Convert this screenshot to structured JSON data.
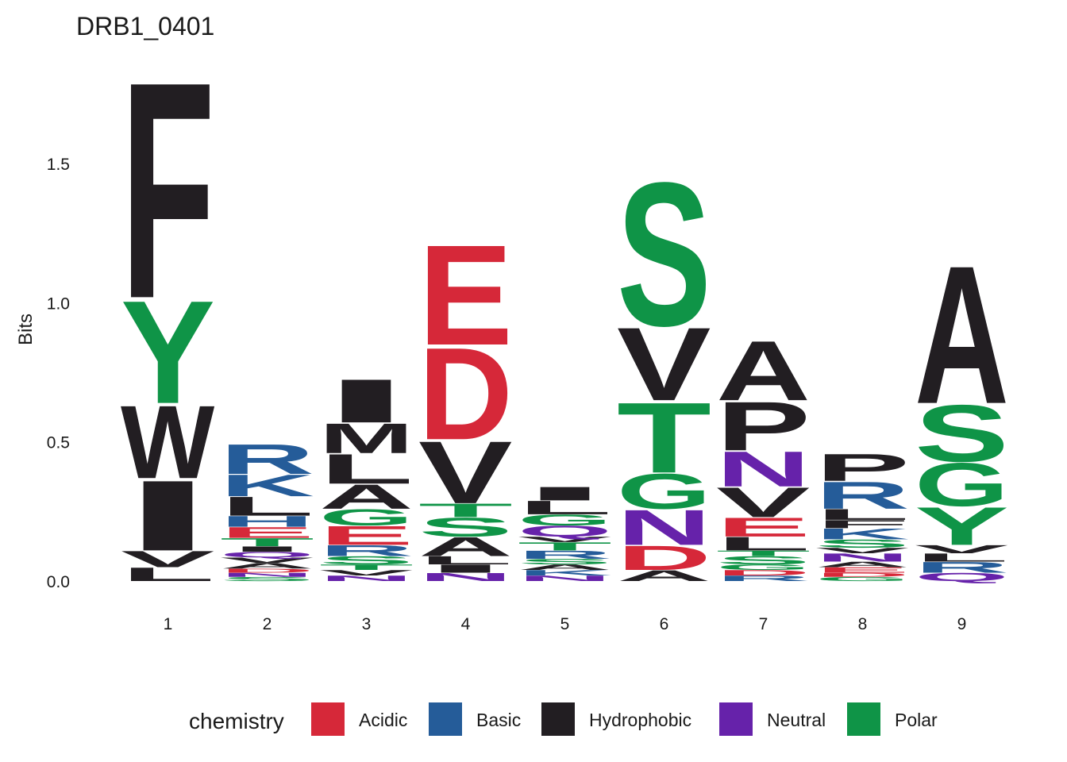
{
  "chart_data": {
    "type": "sequence-logo",
    "title": "DRB1_0401",
    "xlabel": "",
    "ylabel": "Bits",
    "ylim": [
      0,
      1.82
    ],
    "yticks": [
      "0.0",
      "0.5",
      "1.0",
      "1.5"
    ],
    "ytick_values": [
      0,
      0.5,
      1.0,
      1.5
    ],
    "grid": false,
    "legend": {
      "title": "chemistry",
      "position": "bottom",
      "entries": [
        {
          "name": "Acidic",
          "color": "#D62839"
        },
        {
          "name": "Basic",
          "color": "#255C99"
        },
        {
          "name": "Hydrophobic",
          "color": "#221E22"
        },
        {
          "name": "Neutral",
          "color": "#6622AA"
        },
        {
          "name": "Polar",
          "color": "#0F9447"
        }
      ]
    },
    "positions": [
      {
        "label": "1",
        "letters": [
          {
            "aa": "F",
            "bits": 0.8,
            "chem": "Hydrophobic"
          },
          {
            "aa": "Y",
            "bits": 0.38,
            "chem": "Polar"
          },
          {
            "aa": "W",
            "bits": 0.27,
            "chem": "Hydrophobic"
          },
          {
            "aa": "I",
            "bits": 0.26,
            "chem": "Hydrophobic"
          },
          {
            "aa": "V",
            "bits": 0.06,
            "chem": "Hydrophobic"
          },
          {
            "aa": "L",
            "bits": 0.05,
            "chem": "Hydrophobic"
          }
        ]
      },
      {
        "label": "2",
        "letters": [
          {
            "aa": "R",
            "bits": 0.11,
            "chem": "Basic"
          },
          {
            "aa": "K",
            "bits": 0.08,
            "chem": "Basic"
          },
          {
            "aa": "L",
            "bits": 0.07,
            "chem": "Hydrophobic"
          },
          {
            "aa": "H",
            "bits": 0.04,
            "chem": "Basic"
          },
          {
            "aa": "E",
            "bits": 0.04,
            "chem": "Acidic"
          },
          {
            "aa": "T",
            "bits": 0.03,
            "chem": "Polar"
          },
          {
            "aa": "I",
            "bits": 0.02,
            "chem": "Hydrophobic"
          },
          {
            "aa": "Q",
            "bits": 0.02,
            "chem": "Neutral"
          },
          {
            "aa": "V",
            "bits": 0.02,
            "chem": "Hydrophobic"
          },
          {
            "aa": "A",
            "bits": 0.02,
            "chem": "Hydrophobic"
          },
          {
            "aa": "D",
            "bits": 0.015,
            "chem": "Acidic"
          },
          {
            "aa": "N",
            "bits": 0.015,
            "chem": "Neutral"
          },
          {
            "aa": "S",
            "bits": 0.015,
            "chem": "Polar"
          }
        ]
      },
      {
        "label": "3",
        "letters": [
          {
            "aa": "I",
            "bits": 0.16,
            "chem": "Hydrophobic"
          },
          {
            "aa": "M",
            "bits": 0.11,
            "chem": "Hydrophobic"
          },
          {
            "aa": "L",
            "bits": 0.11,
            "chem": "Hydrophobic"
          },
          {
            "aa": "A",
            "bits": 0.09,
            "chem": "Hydrophobic"
          },
          {
            "aa": "G",
            "bits": 0.06,
            "chem": "Polar"
          },
          {
            "aa": "E",
            "bits": 0.07,
            "chem": "Acidic"
          },
          {
            "aa": "R",
            "bits": 0.04,
            "chem": "Basic"
          },
          {
            "aa": "S",
            "bits": 0.03,
            "chem": "Polar"
          },
          {
            "aa": "T",
            "bits": 0.02,
            "chem": "Polar"
          },
          {
            "aa": "V",
            "bits": 0.02,
            "chem": "Hydrophobic"
          },
          {
            "aa": "N",
            "bits": 0.02,
            "chem": "Neutral"
          }
        ]
      },
      {
        "label": "4",
        "letters": [
          {
            "aa": "E",
            "bits": 0.37,
            "chem": "Acidic"
          },
          {
            "aa": "D",
            "bits": 0.34,
            "chem": "Acidic"
          },
          {
            "aa": "V",
            "bits": 0.23,
            "chem": "Hydrophobic"
          },
          {
            "aa": "T",
            "bits": 0.05,
            "chem": "Polar"
          },
          {
            "aa": "S",
            "bits": 0.07,
            "chem": "Polar"
          },
          {
            "aa": "A",
            "bits": 0.07,
            "chem": "Hydrophobic"
          },
          {
            "aa": "L",
            "bits": 0.03,
            "chem": "Hydrophobic"
          },
          {
            "aa": "I",
            "bits": 0.03,
            "chem": "Hydrophobic"
          },
          {
            "aa": "N",
            "bits": 0.03,
            "chem": "Neutral"
          }
        ]
      },
      {
        "label": "5",
        "letters": [
          {
            "aa": "I",
            "bits": 0.05,
            "chem": "Hydrophobic"
          },
          {
            "aa": "L",
            "bits": 0.05,
            "chem": "Hydrophobic"
          },
          {
            "aa": "G",
            "bits": 0.04,
            "chem": "Polar"
          },
          {
            "aa": "Q",
            "bits": 0.04,
            "chem": "Neutral"
          },
          {
            "aa": "V",
            "bits": 0.02,
            "chem": "Hydrophobic"
          },
          {
            "aa": "T",
            "bits": 0.03,
            "chem": "Polar"
          },
          {
            "aa": "R",
            "bits": 0.03,
            "chem": "Basic"
          },
          {
            "aa": "S",
            "bits": 0.02,
            "chem": "Polar"
          },
          {
            "aa": "A",
            "bits": 0.02,
            "chem": "Hydrophobic"
          },
          {
            "aa": "K",
            "bits": 0.02,
            "chem": "Basic"
          },
          {
            "aa": "N",
            "bits": 0.02,
            "chem": "Neutral"
          }
        ]
      },
      {
        "label": "6",
        "letters": [
          {
            "aa": "S",
            "bits": 0.53,
            "chem": "Polar"
          },
          {
            "aa": "V",
            "bits": 0.27,
            "chem": "Hydrophobic"
          },
          {
            "aa": "T",
            "bits": 0.26,
            "chem": "Polar"
          },
          {
            "aa": "G",
            "bits": 0.13,
            "chem": "Polar"
          },
          {
            "aa": "N",
            "bits": 0.13,
            "chem": "Neutral"
          },
          {
            "aa": "D",
            "bits": 0.09,
            "chem": "Acidic"
          },
          {
            "aa": "A",
            "bits": 0.04,
            "chem": "Hydrophobic"
          }
        ]
      },
      {
        "label": "7",
        "letters": [
          {
            "aa": "A",
            "bits": 0.22,
            "chem": "Hydrophobic"
          },
          {
            "aa": "P",
            "bits": 0.18,
            "chem": "Hydrophobic"
          },
          {
            "aa": "N",
            "bits": 0.13,
            "chem": "Neutral"
          },
          {
            "aa": "V",
            "bits": 0.11,
            "chem": "Hydrophobic"
          },
          {
            "aa": "E",
            "bits": 0.07,
            "chem": "Acidic"
          },
          {
            "aa": "L",
            "bits": 0.05,
            "chem": "Hydrophobic"
          },
          {
            "aa": "T",
            "bits": 0.02,
            "chem": "Polar"
          },
          {
            "aa": "S",
            "bits": 0.03,
            "chem": "Polar"
          },
          {
            "aa": "G",
            "bits": 0.02,
            "chem": "Polar"
          },
          {
            "aa": "D",
            "bits": 0.02,
            "chem": "Acidic"
          },
          {
            "aa": "R",
            "bits": 0.02,
            "chem": "Basic"
          }
        ]
      },
      {
        "label": "8",
        "letters": [
          {
            "aa": "P",
            "bits": 0.1,
            "chem": "Hydrophobic"
          },
          {
            "aa": "R",
            "bits": 0.1,
            "chem": "Basic"
          },
          {
            "aa": "L",
            "bits": 0.04,
            "chem": "Hydrophobic"
          },
          {
            "aa": "F",
            "bits": 0.03,
            "chem": "Hydrophobic"
          },
          {
            "aa": "K",
            "bits": 0.04,
            "chem": "Basic"
          },
          {
            "aa": "S",
            "bits": 0.03,
            "chem": "Polar"
          },
          {
            "aa": "V",
            "bits": 0.02,
            "chem": "Hydrophobic"
          },
          {
            "aa": "N",
            "bits": 0.03,
            "chem": "Neutral"
          },
          {
            "aa": "A",
            "bits": 0.02,
            "chem": "Hydrophobic"
          },
          {
            "aa": "E",
            "bits": 0.02,
            "chem": "Acidic"
          },
          {
            "aa": "D",
            "bits": 0.015,
            "chem": "Acidic"
          },
          {
            "aa": "G",
            "bits": 0.015,
            "chem": "Polar"
          }
        ]
      },
      {
        "label": "9",
        "letters": [
          {
            "aa": "A",
            "bits": 0.51,
            "chem": "Hydrophobic"
          },
          {
            "aa": "S",
            "bits": 0.21,
            "chem": "Polar"
          },
          {
            "aa": "G",
            "bits": 0.16,
            "chem": "Polar"
          },
          {
            "aa": "Y",
            "bits": 0.14,
            "chem": "Polar"
          },
          {
            "aa": "V",
            "bits": 0.03,
            "chem": "Hydrophobic"
          },
          {
            "aa": "L",
            "bits": 0.03,
            "chem": "Hydrophobic"
          },
          {
            "aa": "R",
            "bits": 0.04,
            "chem": "Basic"
          },
          {
            "aa": "Q",
            "bits": 0.03,
            "chem": "Neutral"
          }
        ]
      }
    ]
  }
}
